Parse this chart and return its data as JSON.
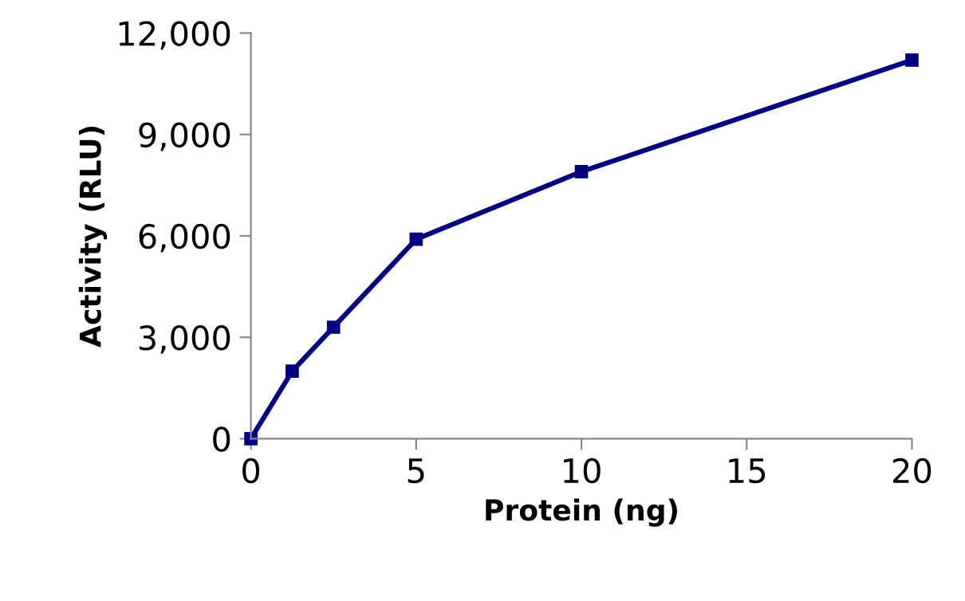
{
  "chart_data": {
    "type": "line",
    "xlabel": "Protein (ng)",
    "ylabel": "Activity (RLU)",
    "x": [
      0,
      1.25,
      2.5,
      5,
      10,
      20
    ],
    "series": [
      {
        "color": "#000080",
        "values": [
          0,
          2000,
          3300,
          5900,
          7900,
          11200
        ]
      }
    ],
    "marker": "square",
    "line_style": "solid",
    "grid": false,
    "legend": false,
    "xlim": [
      0,
      20
    ],
    "xticks": [
      0,
      5,
      10,
      15,
      20
    ],
    "ylim": [
      0,
      12000
    ],
    "yticks": [
      {
        "value": 0,
        "label": "0"
      },
      {
        "value": 3000,
        "label": "3,000"
      },
      {
        "value": 6000,
        "label": "6,000"
      },
      {
        "value": 9000,
        "label": "9,000"
      },
      {
        "value": 12000,
        "label": "12,000"
      }
    ]
  }
}
